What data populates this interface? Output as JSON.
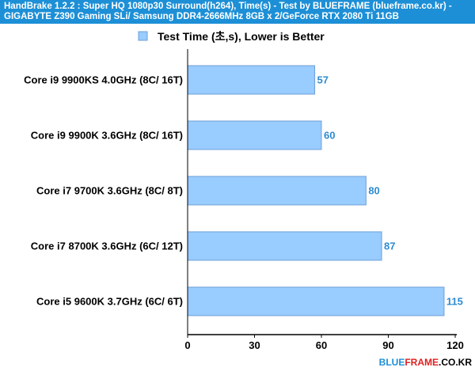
{
  "header": {
    "line1": "HandBrake 1.2.2 : Super HQ 1080p30 Surround(h264), Time(s) - Test by BLUEFRAME (blueframe.co.kr) -",
    "line2": "GIGABYTE Z390 Gaming SLi/ Samsung DDR4-2666MHz 8GB x 2/GeForce RTX 2080 Ti 11GB"
  },
  "brand": {
    "part1": "BLUE",
    "part2": "FRAME",
    "part3": ".CO.KR"
  },
  "colors": {
    "header_bg": "#1d8fd6",
    "bar_fill": "#99ccff",
    "bar_stroke": "#6e9fd4",
    "value_label": "#2e8bd0",
    "brand_blue": "#1d8fd6",
    "brand_red": "#e02020"
  },
  "chart_data": {
    "type": "bar",
    "orientation": "horizontal",
    "categories": [
      "Core i9 9900KS 4.0GHz (8C/ 16T)",
      "Core i9 9900K 3.6GHz (8C/ 16T)",
      "Core i7 9700K 3.6GHz (8C/ 8T)",
      "Core i7 8700K 3.6GHz (6C/ 12T)",
      "Core i5 9600K 3.7GHz (6C/ 6T)"
    ],
    "series": [
      {
        "name": "Test Time (초,s), Lower is Better",
        "values": [
          57,
          60,
          80,
          87,
          115
        ]
      }
    ],
    "value_labels": [
      "57",
      "60",
      "80",
      "87",
      "115"
    ],
    "xlim": [
      0,
      120
    ],
    "x_ticks": [
      0,
      30,
      60,
      90,
      120
    ],
    "x_tick_labels": [
      "0",
      "30",
      "60",
      "90",
      "120"
    ],
    "legend_position": "top-center",
    "grid": false
  }
}
